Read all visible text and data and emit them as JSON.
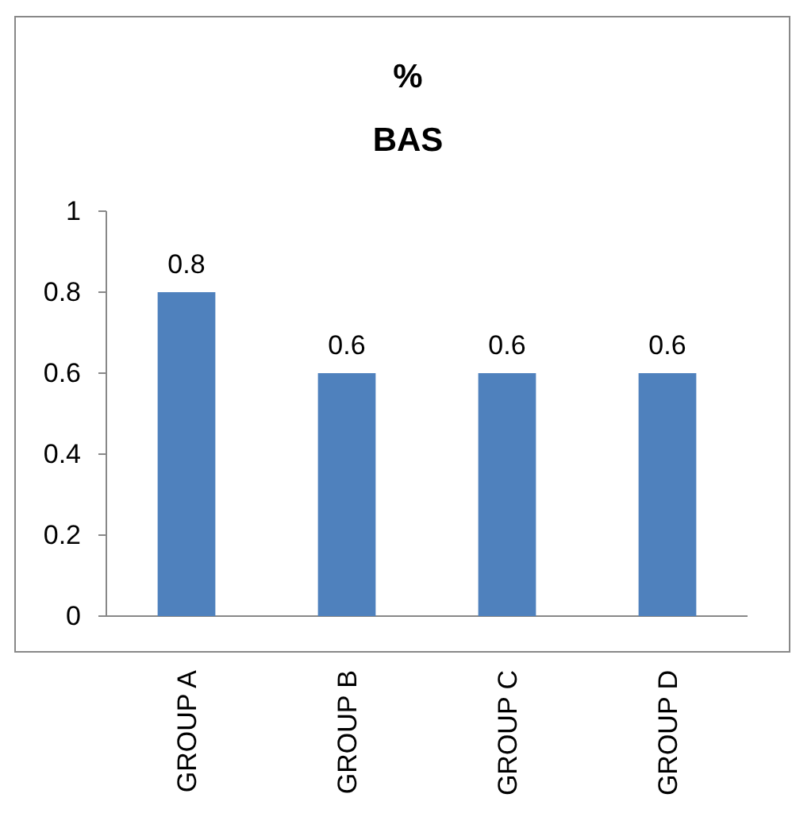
{
  "chart_data": {
    "type": "bar",
    "title": "%\nBAS",
    "categories": [
      "GROUP A",
      "GROUP B",
      "GROUP C",
      "GROUP D"
    ],
    "values": [
      0.8,
      0.6,
      0.6,
      0.6
    ],
    "color": "#4f81bd",
    "ylim": [
      0,
      1
    ],
    "yticks": [
      0,
      0.2,
      0.4,
      0.6,
      0.8,
      1
    ],
    "grid": false,
    "data_labels": true
  }
}
